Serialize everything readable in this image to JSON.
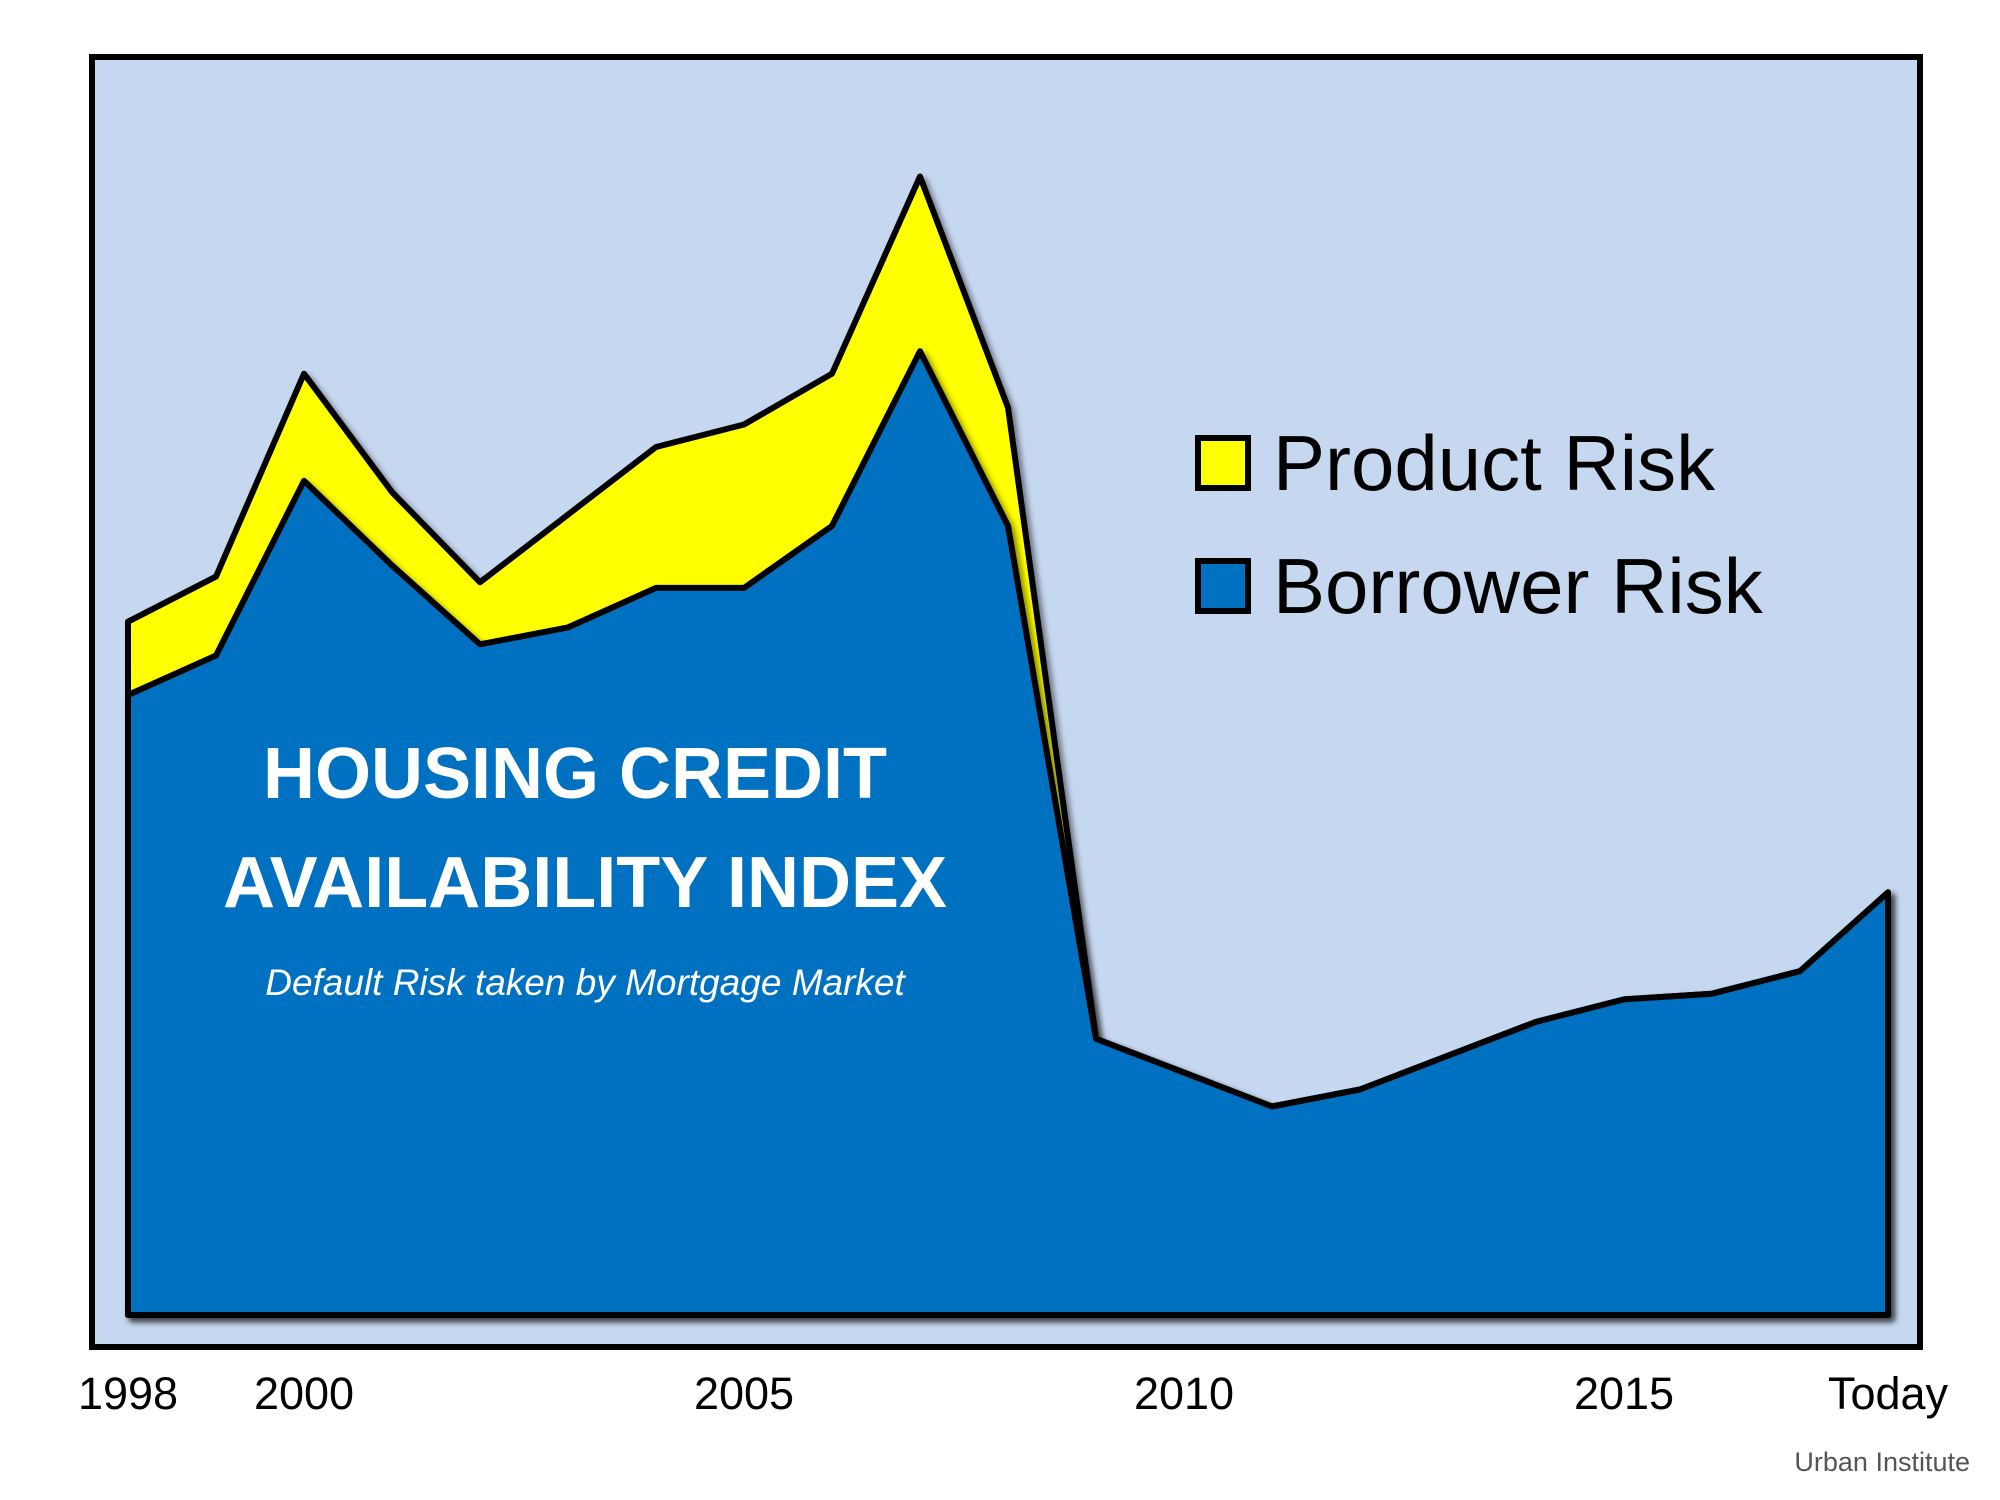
{
  "chart_data": {
    "type": "area",
    "title_lines": [
      "HOUSING CREDIT",
      "AVAILABILITY INDEX"
    ],
    "subtitle": "Default Risk taken by Mortgage Market",
    "source": "Urban Institute",
    "x_tick_labels": [
      "1998",
      "2000",
      "2005",
      "2010",
      "2015",
      "Today"
    ],
    "stacked": true,
    "grid": false,
    "legend_position": "top-right",
    "colors": {
      "background": "#c6d8f0",
      "border": "#000000",
      "product_risk": "#ffff00",
      "borrower_risk": "#0070c0"
    },
    "x": [
      1998,
      1999,
      2000,
      2001,
      2002,
      2003,
      2004,
      2005,
      2006,
      2007,
      2008,
      2009,
      2010,
      2011,
      2012,
      2013,
      2014,
      2015,
      2016,
      2017,
      2018
    ],
    "series": [
      {
        "name": "Borrower Risk",
        "values": [
          11.0,
          11.7,
          14.8,
          13.3,
          11.9,
          12.2,
          12.9,
          12.9,
          14.0,
          17.1,
          14.0,
          4.9,
          4.3,
          3.7,
          4.0,
          4.6,
          5.2,
          5.6,
          5.7,
          6.1,
          7.5
        ]
      },
      {
        "name": "Product Risk",
        "values": [
          1.3,
          1.4,
          1.9,
          1.3,
          1.1,
          2.0,
          2.5,
          2.9,
          2.7,
          3.1,
          2.1,
          0.0,
          0.0,
          0.0,
          0.0,
          0.0,
          0.0,
          0.0,
          0.0,
          0.0,
          0.0
        ]
      }
    ],
    "ylim": [
      0,
      22
    ]
  }
}
